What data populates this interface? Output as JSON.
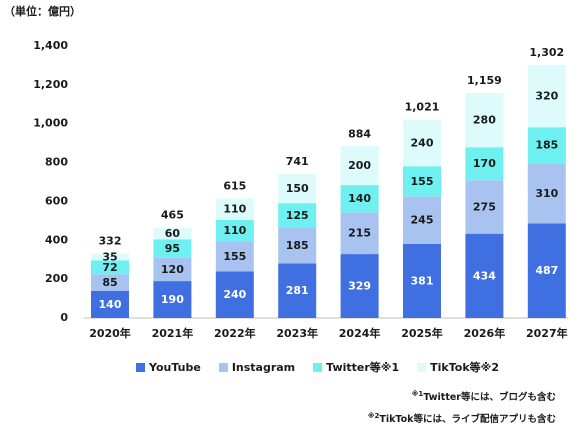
{
  "chart_data": {
    "type": "bar",
    "stacked": true,
    "unit_label": "（単位：億円）",
    "categories": [
      "2020年",
      "2021年",
      "2022年",
      "2023年",
      "2024年",
      "2025年",
      "2026年",
      "2027年"
    ],
    "series": [
      {
        "name": "YouTube",
        "color": "#3F6FE0",
        "label_color": "#ffffff",
        "values": [
          140,
          190,
          240,
          281,
          329,
          381,
          434,
          487
        ]
      },
      {
        "name": "Instagram",
        "color": "#A9C3F0",
        "label_color": "#1a1a1a",
        "values": [
          85,
          120,
          155,
          185,
          215,
          245,
          275,
          310
        ]
      },
      {
        "name": "Twitter等※1",
        "color": "#6FF0F0",
        "label_color": "#1a1a1a",
        "values": [
          72,
          95,
          110,
          125,
          140,
          155,
          170,
          185
        ]
      },
      {
        "name": "TikTok等※2",
        "color": "#DDFBFB",
        "label_color": "#1a1a1a",
        "values": [
          35,
          60,
          110,
          150,
          200,
          240,
          280,
          320
        ]
      }
    ],
    "totals": [
      "332",
      "465",
      "615",
      "741",
      "884",
      "1,021",
      "1,159",
      "1,302"
    ],
    "ylim": [
      0,
      1400
    ],
    "yticks": [
      "0",
      "200",
      "400",
      "600",
      "800",
      "1,000",
      "1,200",
      "1,400"
    ],
    "grid": false,
    "legend_position": "bottom"
  },
  "notes": {
    "note1_mark": "※1",
    "note1_text": "Twitter等には、ブログも含む",
    "note2_mark": "※2",
    "note2_text": "TikTok等には、ライブ配信アプリも含む"
  }
}
